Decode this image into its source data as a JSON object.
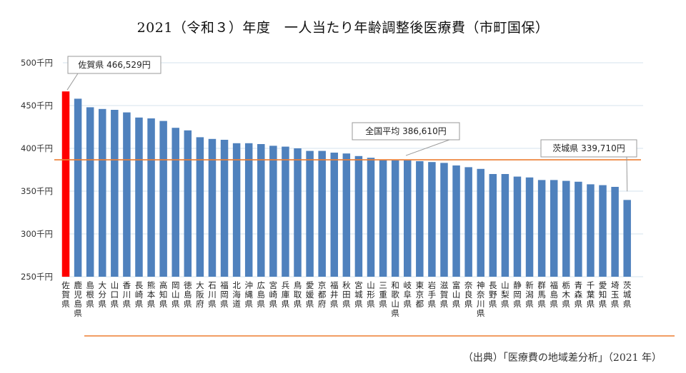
{
  "title": "2021（令和３）年度　一人当たり年齢調整後医療費（市町国保）",
  "source": "（出典）「医療費の地域差分析」（2021 年）",
  "colors": {
    "bar": "#4f81bd",
    "highlight": "#ff0000",
    "average_line": "#ed7d31",
    "grid": "#d6e3ee"
  },
  "chart_data": {
    "type": "bar",
    "ylim": [
      250,
      500
    ],
    "yticks": [
      250,
      300,
      350,
      400,
      450,
      500
    ],
    "ytick_labels": [
      "250千円",
      "300千円",
      "350千円",
      "400千円",
      "450千円",
      "500千円"
    ],
    "categories": [
      "佐賀県",
      "鹿児島県",
      "島根県",
      "大分県",
      "山口県",
      "香川県",
      "長崎県",
      "熊本県",
      "高知県",
      "岡山県",
      "徳島県",
      "大阪府",
      "石川県",
      "福岡県",
      "北海道",
      "沖縄県",
      "広島県",
      "宮崎県",
      "兵庫県",
      "鳥取県",
      "愛媛県",
      "京都府",
      "福井県",
      "秋田県",
      "宮城県",
      "山形県",
      "三重県",
      "和歌山県",
      "岐阜県",
      "東京都",
      "岩手県",
      "滋賀県",
      "富山県",
      "奈良県",
      "神奈川県",
      "長野県",
      "山梨県",
      "静岡県",
      "新潟県",
      "群馬県",
      "福島県",
      "栃木県",
      "青森県",
      "千葉県",
      "愛知県",
      "埼玉県",
      "茨城県"
    ],
    "values": [
      466.5,
      458,
      448,
      446,
      445,
      442,
      436,
      435,
      432,
      424,
      421,
      413,
      411,
      410,
      406,
      406,
      405,
      403,
      402,
      400,
      397,
      397,
      395,
      394,
      391,
      389,
      387,
      386,
      386,
      385,
      384,
      383,
      380,
      378,
      376,
      370,
      370,
      367,
      366,
      363,
      363,
      362,
      361,
      358,
      357,
      355,
      339.7
    ],
    "highlight_index": 0,
    "average": 386.61,
    "annotations": [
      {
        "text": "佐賀県 466,529円",
        "target": 0
      },
      {
        "text": "全国平均 386,610円",
        "target": "average"
      },
      {
        "text": "茨城県 339,710円",
        "target": 46
      }
    ],
    "grid": true
  }
}
